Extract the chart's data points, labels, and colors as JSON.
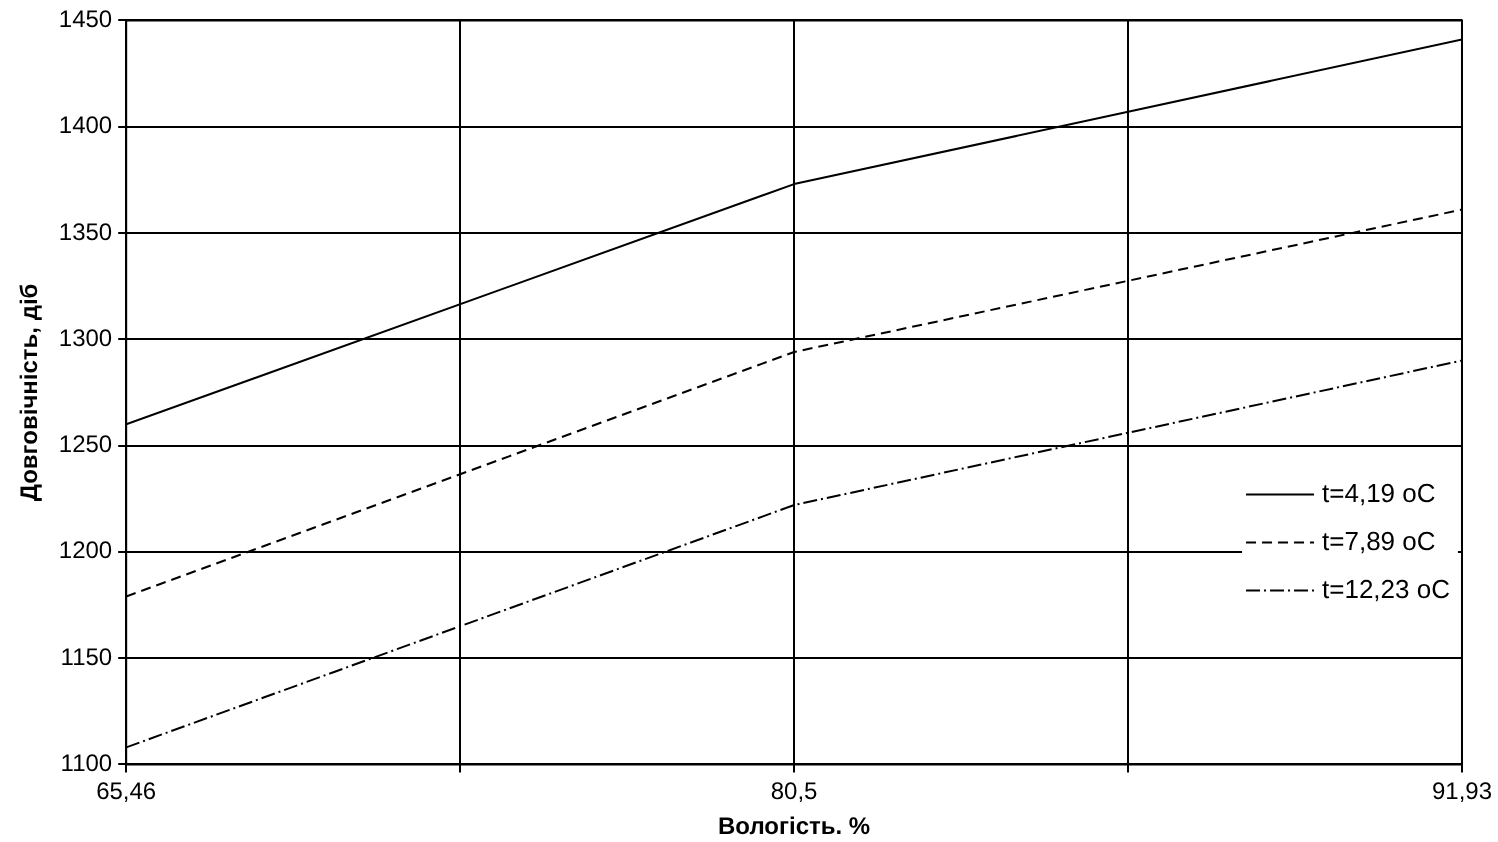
{
  "chart_data": {
    "type": "line",
    "xlabel": "Вологість. %",
    "ylabel": "Довговічність, діб",
    "categories": [
      "65,46",
      "80,5",
      "91,93"
    ],
    "series": [
      {
        "name": "t=4,19 oC",
        "color": "#000000",
        "line_style": "solid",
        "values": [
          1260,
          1373,
          1441
        ]
      },
      {
        "name": "t=7,89 oC",
        "color": "#000000",
        "line_style": "dashed",
        "values": [
          1179,
          1294,
          1361
        ]
      },
      {
        "name": "t=12,23 oC",
        "color": "#000000",
        "line_style": "dotted",
        "values": [
          1108,
          1222,
          1290
        ]
      }
    ],
    "ylim": [
      1100,
      1450
    ],
    "yticks": [
      1100,
      1150,
      1200,
      1250,
      1300,
      1350,
      1400,
      1450
    ],
    "grid": true,
    "legend": "right",
    "marker": "none"
  }
}
